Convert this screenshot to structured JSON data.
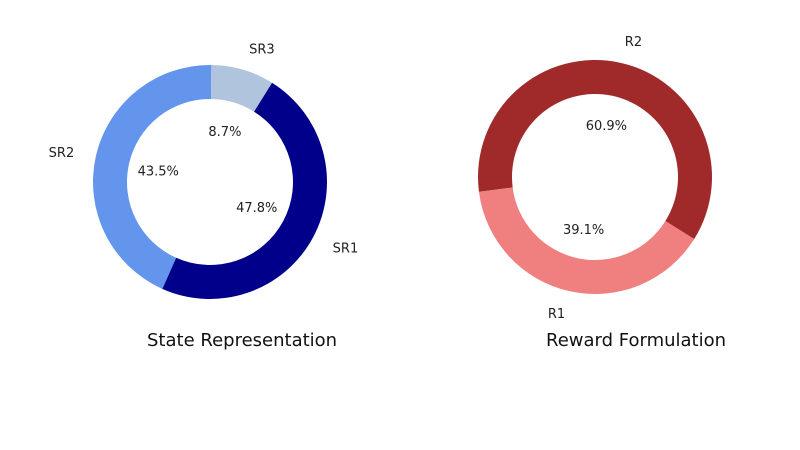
{
  "chart_data": [
    {
      "type": "pie",
      "title": "State Representation",
      "slices": [
        {
          "label": "SR1",
          "value": 47.8,
          "pct_label": "47.8%",
          "color": "#00008B"
        },
        {
          "label": "SR2",
          "value": 43.5,
          "pct_label": "43.5%",
          "color": "#6495ED"
        },
        {
          "label": "SR3",
          "value": 8.7,
          "pct_label": "8.7%",
          "color": "#B0C4DE"
        }
      ]
    },
    {
      "type": "pie",
      "title": "Reward Formulation",
      "slices": [
        {
          "label": "R1",
          "value": 39.1,
          "pct_label": "39.1%",
          "color": "#F08080"
        },
        {
          "label": "R2",
          "value": 60.9,
          "pct_label": "60.9%",
          "color": "#A0292A"
        }
      ]
    }
  ]
}
